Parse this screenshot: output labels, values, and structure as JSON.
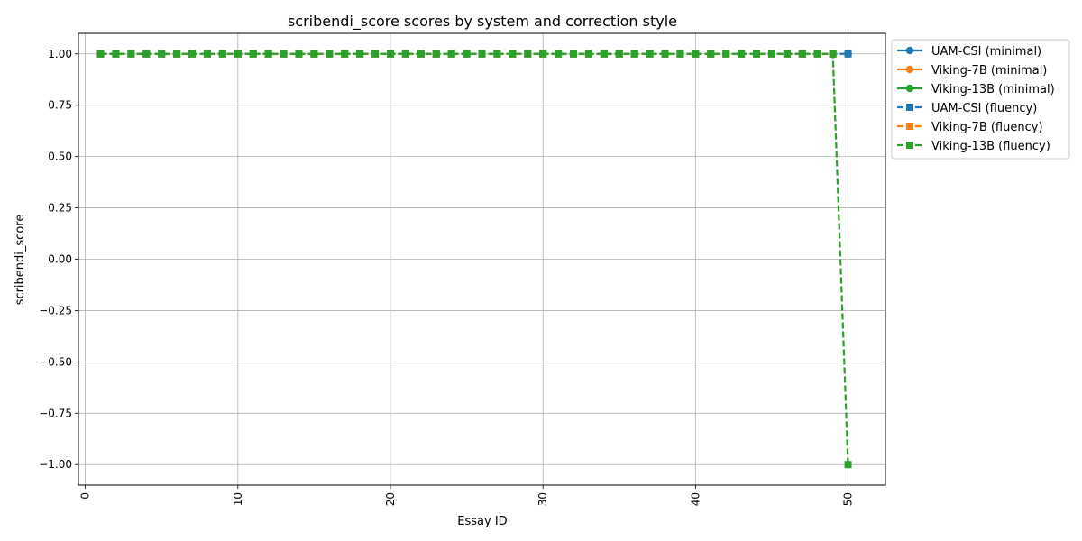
{
  "chart_data": {
    "type": "line",
    "title": "scribendi_score scores by system and correction style",
    "xlabel": "Essay ID",
    "ylabel": "scribendi_score",
    "xlim": [
      -0.45,
      52.45
    ],
    "ylim": [
      -1.1,
      1.1
    ],
    "x_ticks": [
      0,
      10,
      20,
      30,
      40,
      50
    ],
    "x_tick_labels": [
      "0",
      "10",
      "20",
      "30",
      "40",
      "50"
    ],
    "y_ticks": [
      1.0,
      0.75,
      0.5,
      0.25,
      0.0,
      -0.25,
      -0.5,
      -0.75,
      -1.0
    ],
    "y_tick_labels": [
      "1.00",
      "0.75",
      "0.50",
      "0.25",
      "0.00",
      "−0.25",
      "−0.50",
      "−0.75",
      "−1.00"
    ],
    "grid": true,
    "legend_position": "outside-top-right",
    "series": [
      {
        "name": "UAM-CSI (minimal)",
        "color": "#1f77b4",
        "marker": "circle",
        "style": "solid",
        "x": [
          50
        ],
        "values": [
          1
        ]
      },
      {
        "name": "Viking-7B (minimal)",
        "color": "#ff7f0e",
        "marker": "circle",
        "style": "solid",
        "x": [
          50
        ],
        "values": [
          1
        ]
      },
      {
        "name": "Viking-13B (minimal)",
        "color": "#2ca02c",
        "marker": "circle",
        "style": "solid",
        "x": [
          50
        ],
        "values": [
          1
        ]
      },
      {
        "name": "UAM-CSI (fluency)",
        "color": "#1f77b4",
        "marker": "square",
        "style": "dashed",
        "x": [
          1,
          2,
          3,
          4,
          5,
          6,
          7,
          8,
          9,
          10,
          11,
          12,
          13,
          14,
          15,
          16,
          17,
          18,
          19,
          20,
          21,
          22,
          23,
          24,
          25,
          26,
          27,
          28,
          29,
          30,
          31,
          32,
          33,
          34,
          35,
          36,
          37,
          38,
          39,
          40,
          41,
          42,
          43,
          44,
          45,
          46,
          47,
          48,
          49,
          50
        ],
        "values": [
          1,
          1,
          1,
          1,
          1,
          1,
          1,
          1,
          1,
          1,
          1,
          1,
          1,
          1,
          1,
          1,
          1,
          1,
          1,
          1,
          1,
          1,
          1,
          1,
          1,
          1,
          1,
          1,
          1,
          1,
          1,
          1,
          1,
          1,
          1,
          1,
          1,
          1,
          1,
          1,
          1,
          1,
          1,
          1,
          1,
          1,
          1,
          1,
          1,
          1
        ]
      },
      {
        "name": "Viking-7B (fluency)",
        "color": "#ff7f0e",
        "marker": "square",
        "style": "dashed",
        "x": [
          1,
          2,
          3,
          4,
          5,
          6,
          7,
          8,
          9,
          10,
          11,
          12,
          13,
          14,
          15,
          16,
          17,
          18,
          19,
          20,
          21,
          22,
          23,
          24,
          25,
          26,
          27,
          28,
          29,
          30,
          31,
          32,
          33,
          34,
          35,
          36,
          37,
          38,
          39,
          40,
          41,
          42,
          43,
          44,
          45,
          46,
          47,
          48,
          49
        ],
        "values": [
          1,
          1,
          1,
          1,
          1,
          1,
          1,
          1,
          1,
          1,
          1,
          1,
          1,
          1,
          1,
          1,
          1,
          1,
          1,
          1,
          1,
          1,
          1,
          1,
          1,
          1,
          1,
          1,
          1,
          1,
          1,
          1,
          1,
          1,
          1,
          1,
          1,
          1,
          1,
          1,
          1,
          1,
          1,
          1,
          1,
          1,
          1,
          1,
          1
        ]
      },
      {
        "name": "Viking-13B (fluency)",
        "color": "#2ca02c",
        "marker": "square",
        "style": "dashed",
        "x": [
          1,
          2,
          3,
          4,
          5,
          6,
          7,
          8,
          9,
          10,
          11,
          12,
          13,
          14,
          15,
          16,
          17,
          18,
          19,
          20,
          21,
          22,
          23,
          24,
          25,
          26,
          27,
          28,
          29,
          30,
          31,
          32,
          33,
          34,
          35,
          36,
          37,
          38,
          39,
          40,
          41,
          42,
          43,
          44,
          45,
          46,
          47,
          48,
          49,
          50
        ],
        "values": [
          1,
          1,
          1,
          1,
          1,
          1,
          1,
          1,
          1,
          1,
          1,
          1,
          1,
          1,
          1,
          1,
          1,
          1,
          1,
          1,
          1,
          1,
          1,
          1,
          1,
          1,
          1,
          1,
          1,
          1,
          1,
          1,
          1,
          1,
          1,
          1,
          1,
          1,
          1,
          1,
          1,
          1,
          1,
          1,
          1,
          1,
          1,
          1,
          1,
          -1
        ]
      }
    ]
  }
}
